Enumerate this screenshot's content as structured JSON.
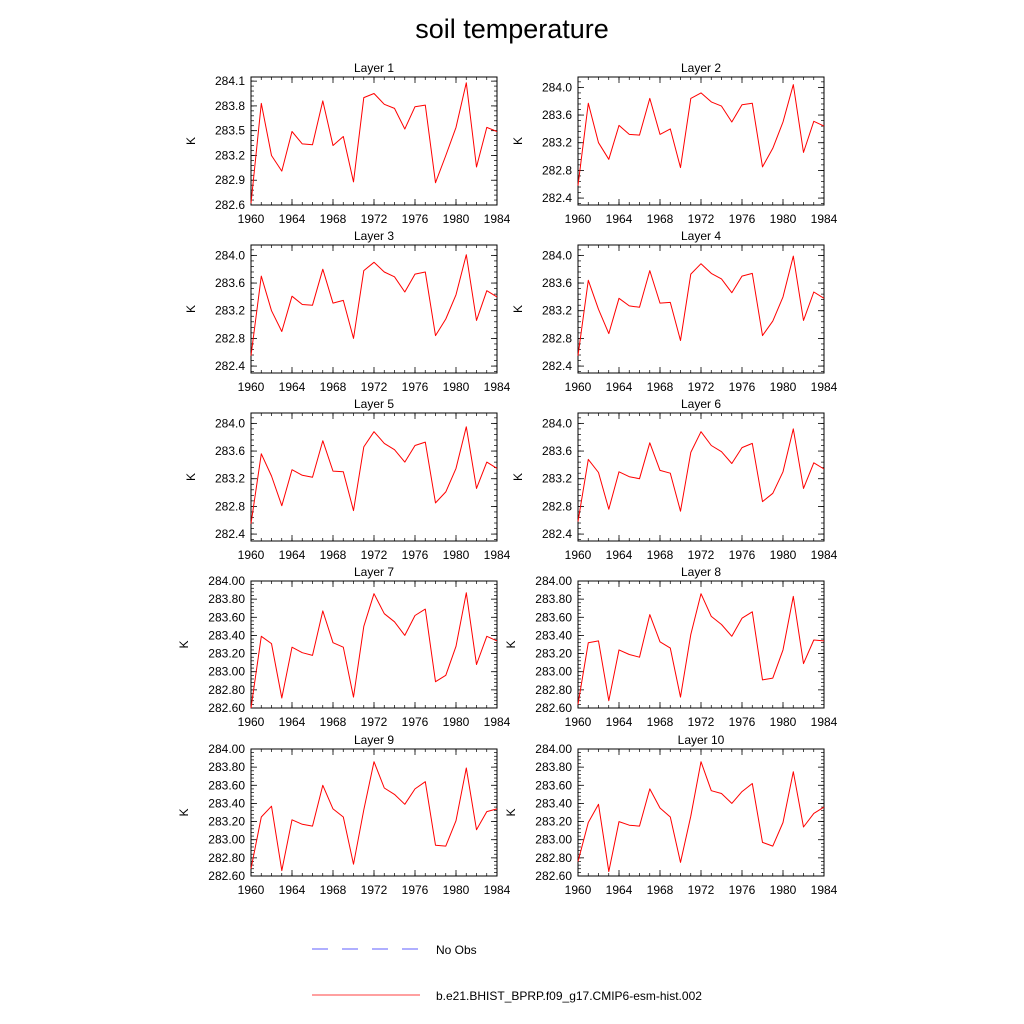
{
  "title": "soil temperature",
  "legend": [
    {
      "label": "No Obs",
      "color": "#2b2bff",
      "style": "dashed"
    },
    {
      "label": "b.e21.BHIST_BPRP.f09_g17.CMIP6-esm-hist.002",
      "color": "#ff0000",
      "style": "solid"
    }
  ],
  "chart_data": [
    {
      "type": "line",
      "title": "Layer 1",
      "ylabel": "K",
      "x": [
        1960,
        1961,
        1962,
        1963,
        1964,
        1965,
        1966,
        1967,
        1968,
        1969,
        1970,
        1971,
        1972,
        1973,
        1974,
        1975,
        1976,
        1977,
        1978,
        1979,
        1980,
        1981,
        1982,
        1983,
        1984
      ],
      "ylim": [
        282.6,
        284.15
      ],
      "yticks": [
        "282.6",
        "282.9",
        "283.2",
        "283.5",
        "283.8",
        "284.1"
      ],
      "xticks": [
        "1960",
        "1964",
        "1968",
        "1972",
        "1976",
        "1980",
        "1984"
      ],
      "series": [
        {
          "name": "b.e21.BHIST_BPRP.f09_g17.CMIP6-esm-hist.002",
          "color": "#ff0000",
          "values": [
            282.62,
            283.83,
            283.2,
            283.01,
            283.49,
            283.34,
            283.33,
            283.86,
            283.32,
            283.43,
            282.88,
            283.9,
            283.95,
            283.82,
            283.77,
            283.52,
            283.79,
            283.81,
            282.87,
            283.2,
            283.54,
            284.08,
            283.06,
            283.54,
            283.49
          ]
        }
      ]
    },
    {
      "type": "line",
      "title": "Layer 2",
      "ylabel": "K",
      "x": [
        1960,
        1961,
        1962,
        1963,
        1964,
        1965,
        1966,
        1967,
        1968,
        1969,
        1970,
        1971,
        1972,
        1973,
        1974,
        1975,
        1976,
        1977,
        1978,
        1979,
        1980,
        1981,
        1982,
        1983,
        1984
      ],
      "ylim": [
        282.3,
        284.15
      ],
      "yticks": [
        "282.4",
        "282.8",
        "283.2",
        "283.6",
        "284.0"
      ],
      "xticks": [
        "1960",
        "1964",
        "1968",
        "1972",
        "1976",
        "1980",
        "1984"
      ],
      "series": [
        {
          "name": "b.e21.BHIST_BPRP.f09_g17.CMIP6-esm-hist.002",
          "color": "#ff0000",
          "values": [
            282.58,
            283.77,
            283.2,
            282.96,
            283.45,
            283.32,
            283.31,
            283.84,
            283.32,
            283.4,
            282.84,
            283.84,
            283.92,
            283.79,
            283.73,
            283.5,
            283.75,
            283.77,
            282.85,
            283.12,
            283.5,
            284.04,
            283.06,
            283.51,
            283.44
          ]
        }
      ]
    },
    {
      "type": "line",
      "title": "Layer 3",
      "ylabel": "K",
      "x": [
        1960,
        1961,
        1962,
        1963,
        1964,
        1965,
        1966,
        1967,
        1968,
        1969,
        1970,
        1971,
        1972,
        1973,
        1974,
        1975,
        1976,
        1977,
        1978,
        1979,
        1980,
        1981,
        1982,
        1983,
        1984
      ],
      "ylim": [
        282.3,
        284.15
      ],
      "yticks": [
        "282.4",
        "282.8",
        "283.2",
        "283.6",
        "284.0"
      ],
      "xticks": [
        "1960",
        "1964",
        "1968",
        "1972",
        "1976",
        "1980",
        "1984"
      ],
      "series": [
        {
          "name": "b.e21.BHIST_BPRP.f09_g17.CMIP6-esm-hist.002",
          "color": "#ff0000",
          "values": [
            282.55,
            283.7,
            283.2,
            282.9,
            283.41,
            283.29,
            283.28,
            283.8,
            283.31,
            283.35,
            282.8,
            283.78,
            283.9,
            283.76,
            283.69,
            283.47,
            283.73,
            283.76,
            282.84,
            283.08,
            283.43,
            284.01,
            283.06,
            283.49,
            283.4
          ]
        }
      ]
    },
    {
      "type": "line",
      "title": "Layer 4",
      "ylabel": "K",
      "x": [
        1960,
        1961,
        1962,
        1963,
        1964,
        1965,
        1966,
        1967,
        1968,
        1969,
        1970,
        1971,
        1972,
        1973,
        1974,
        1975,
        1976,
        1977,
        1978,
        1979,
        1980,
        1981,
        1982,
        1983,
        1984
      ],
      "ylim": [
        282.3,
        284.15
      ],
      "yticks": [
        "282.4",
        "282.8",
        "283.2",
        "283.6",
        "284.0"
      ],
      "xticks": [
        "1960",
        "1964",
        "1968",
        "1972",
        "1976",
        "1980",
        "1984"
      ],
      "series": [
        {
          "name": "b.e21.BHIST_BPRP.f09_g17.CMIP6-esm-hist.002",
          "color": "#ff0000",
          "values": [
            282.55,
            283.64,
            283.22,
            282.87,
            283.38,
            283.27,
            283.25,
            283.78,
            283.31,
            283.32,
            282.77,
            283.73,
            283.88,
            283.74,
            283.66,
            283.46,
            283.7,
            283.74,
            282.84,
            283.05,
            283.4,
            283.99,
            283.06,
            283.47,
            283.38
          ]
        }
      ]
    },
    {
      "type": "line",
      "title": "Layer 5",
      "ylabel": "K",
      "x": [
        1960,
        1961,
        1962,
        1963,
        1964,
        1965,
        1966,
        1967,
        1968,
        1969,
        1970,
        1971,
        1972,
        1973,
        1974,
        1975,
        1976,
        1977,
        1978,
        1979,
        1980,
        1981,
        1982,
        1983,
        1984
      ],
      "ylim": [
        282.3,
        284.15
      ],
      "yticks": [
        "282.4",
        "282.8",
        "283.2",
        "283.6",
        "284.0"
      ],
      "xticks": [
        "1960",
        "1964",
        "1968",
        "1972",
        "1976",
        "1980",
        "1984"
      ],
      "series": [
        {
          "name": "b.e21.BHIST_BPRP.f09_g17.CMIP6-esm-hist.002",
          "color": "#ff0000",
          "values": [
            282.55,
            283.56,
            283.24,
            282.81,
            283.33,
            283.25,
            283.22,
            283.75,
            283.31,
            283.3,
            282.74,
            283.66,
            283.88,
            283.71,
            283.62,
            283.44,
            283.68,
            283.73,
            282.85,
            283.01,
            283.35,
            283.95,
            283.06,
            283.44,
            283.35
          ]
        }
      ]
    },
    {
      "type": "line",
      "title": "Layer 6",
      "ylabel": "K",
      "x": [
        1960,
        1961,
        1962,
        1963,
        1964,
        1965,
        1966,
        1967,
        1968,
        1969,
        1970,
        1971,
        1972,
        1973,
        1974,
        1975,
        1976,
        1977,
        1978,
        1979,
        1980,
        1981,
        1982,
        1983,
        1984
      ],
      "ylim": [
        282.3,
        284.15
      ],
      "yticks": [
        "282.4",
        "282.8",
        "283.2",
        "283.6",
        "284.0"
      ],
      "xticks": [
        "1960",
        "1964",
        "1968",
        "1972",
        "1976",
        "1980",
        "1984"
      ],
      "series": [
        {
          "name": "b.e21.BHIST_BPRP.f09_g17.CMIP6-esm-hist.002",
          "color": "#ff0000",
          "values": [
            282.58,
            283.48,
            283.29,
            282.76,
            283.3,
            283.23,
            283.2,
            283.72,
            283.32,
            283.28,
            282.73,
            283.58,
            283.88,
            283.68,
            283.59,
            283.42,
            283.65,
            283.71,
            282.87,
            282.99,
            283.3,
            283.92,
            283.06,
            283.43,
            283.34
          ]
        }
      ]
    },
    {
      "type": "line",
      "title": "Layer 7",
      "ylabel": "K",
      "x": [
        1960,
        1961,
        1962,
        1963,
        1964,
        1965,
        1966,
        1967,
        1968,
        1969,
        1970,
        1971,
        1972,
        1973,
        1974,
        1975,
        1976,
        1977,
        1978,
        1979,
        1980,
        1981,
        1982,
        1983,
        1984
      ],
      "ylim": [
        282.6,
        284.0
      ],
      "yticks": [
        "282.60",
        "282.80",
        "283.00",
        "283.20",
        "283.40",
        "283.60",
        "283.80",
        "284.00"
      ],
      "xticks": [
        "1960",
        "1964",
        "1968",
        "1972",
        "1976",
        "1980",
        "1984"
      ],
      "series": [
        {
          "name": "b.e21.BHIST_BPRP.f09_g17.CMIP6-esm-hist.002",
          "color": "#ff0000",
          "values": [
            282.6,
            283.39,
            283.31,
            282.71,
            283.27,
            283.21,
            283.18,
            283.67,
            283.32,
            283.27,
            282.72,
            283.5,
            283.86,
            283.64,
            283.55,
            283.4,
            283.62,
            283.69,
            282.89,
            282.96,
            283.28,
            283.87,
            283.08,
            283.39,
            283.34
          ]
        }
      ]
    },
    {
      "type": "line",
      "title": "Layer 8",
      "ylabel": "K",
      "x": [
        1960,
        1961,
        1962,
        1963,
        1964,
        1965,
        1966,
        1967,
        1968,
        1969,
        1970,
        1971,
        1972,
        1973,
        1974,
        1975,
        1976,
        1977,
        1978,
        1979,
        1980,
        1981,
        1982,
        1983,
        1984
      ],
      "ylim": [
        282.6,
        284.0
      ],
      "yticks": [
        "282.60",
        "282.80",
        "283.00",
        "283.20",
        "283.40",
        "283.60",
        "283.80",
        "284.00"
      ],
      "xticks": [
        "1960",
        "1964",
        "1968",
        "1972",
        "1976",
        "1980",
        "1984"
      ],
      "series": [
        {
          "name": "b.e21.BHIST_BPRP.f09_g17.CMIP6-esm-hist.002",
          "color": "#ff0000",
          "values": [
            282.64,
            283.32,
            283.34,
            282.68,
            283.24,
            283.19,
            283.16,
            283.63,
            283.33,
            283.26,
            282.72,
            283.41,
            283.86,
            283.61,
            283.52,
            283.39,
            283.59,
            283.66,
            282.91,
            282.93,
            283.24,
            283.83,
            283.09,
            283.35,
            283.34
          ]
        }
      ]
    },
    {
      "type": "line",
      "title": "Layer 9",
      "ylabel": "K",
      "x": [
        1960,
        1961,
        1962,
        1963,
        1964,
        1965,
        1966,
        1967,
        1968,
        1969,
        1970,
        1971,
        1972,
        1973,
        1974,
        1975,
        1976,
        1977,
        1978,
        1979,
        1980,
        1981,
        1982,
        1983,
        1984
      ],
      "ylim": [
        282.6,
        284.0
      ],
      "yticks": [
        "282.60",
        "282.80",
        "283.00",
        "283.20",
        "283.40",
        "283.60",
        "283.80",
        "284.00"
      ],
      "xticks": [
        "1960",
        "1964",
        "1968",
        "1972",
        "1976",
        "1980",
        "1984"
      ],
      "series": [
        {
          "name": "b.e21.BHIST_BPRP.f09_g17.CMIP6-esm-hist.002",
          "color": "#ff0000",
          "values": [
            282.68,
            283.25,
            283.37,
            282.66,
            283.22,
            283.17,
            283.15,
            283.6,
            283.34,
            283.25,
            282.73,
            283.33,
            283.86,
            283.57,
            283.5,
            283.39,
            283.56,
            283.64,
            282.94,
            282.93,
            283.21,
            283.79,
            283.11,
            283.31,
            283.34
          ]
        }
      ]
    },
    {
      "type": "line",
      "title": "Layer 10",
      "ylabel": "K",
      "x": [
        1960,
        1961,
        1962,
        1963,
        1964,
        1965,
        1966,
        1967,
        1968,
        1969,
        1970,
        1971,
        1972,
        1973,
        1974,
        1975,
        1976,
        1977,
        1978,
        1979,
        1980,
        1981,
        1982,
        1983,
        1984
      ],
      "ylim": [
        282.6,
        284.0
      ],
      "yticks": [
        "282.60",
        "282.80",
        "283.00",
        "283.20",
        "283.40",
        "283.60",
        "283.80",
        "284.00"
      ],
      "xticks": [
        "1960",
        "1964",
        "1968",
        "1972",
        "1976",
        "1980",
        "1984"
      ],
      "series": [
        {
          "name": "b.e21.BHIST_BPRP.f09_g17.CMIP6-esm-hist.002",
          "color": "#ff0000",
          "values": [
            282.76,
            283.19,
            283.39,
            282.65,
            283.2,
            283.16,
            283.15,
            283.56,
            283.35,
            283.25,
            282.75,
            283.26,
            283.86,
            283.54,
            283.51,
            283.4,
            283.53,
            283.62,
            282.97,
            282.93,
            283.19,
            283.75,
            283.14,
            283.29,
            283.36
          ]
        }
      ]
    }
  ]
}
